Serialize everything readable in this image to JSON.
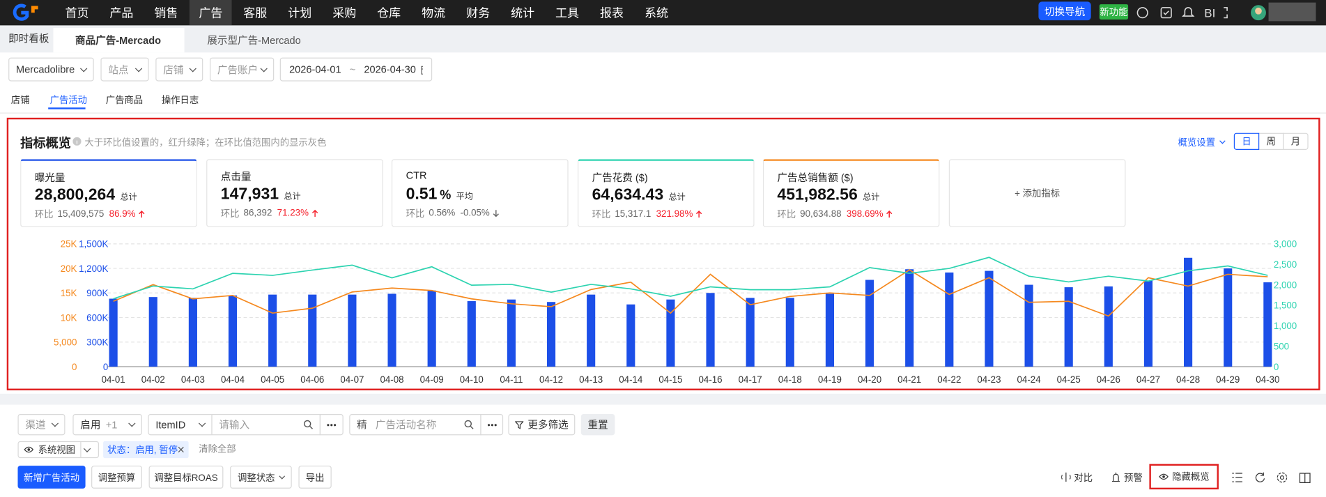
{
  "nav": {
    "menu": [
      "首页",
      "产品",
      "销售",
      "广告",
      "客服",
      "计划",
      "采购",
      "仓库",
      "物流",
      "财务",
      "统计",
      "工具",
      "报表",
      "系统"
    ],
    "active_menu": 3,
    "switch_nav": "切换导航",
    "new_feature": "新功能",
    "bi": "BI"
  },
  "tabs": {
    "home": "即时看板",
    "items": [
      "商品广告-Mercado",
      "展示型广告-Mercado"
    ]
  },
  "filters": {
    "platform": "Mercadolibre",
    "site": "站点",
    "shop": "店铺",
    "ad_account": "广告账户",
    "date_start": "2026-04-01",
    "date_sep": "~",
    "date_end": "2026-04-30"
  },
  "subtabs": {
    "items": [
      "店铺",
      "广告活动",
      "广告商品",
      "操作日志"
    ],
    "active": 1
  },
  "overview": {
    "title": "指标概览",
    "hint": "大于环比值设置的，红升绿降；在环比值范围内的显示灰色",
    "settings": "概览设置",
    "periods": [
      "日",
      "周",
      "月"
    ],
    "cards": [
      {
        "label": "曝光量",
        "value": "28,800,264",
        "agg": "总计",
        "cmp_label": "环比",
        "prev": "15,409,575",
        "change": "86.9%",
        "trend": "up",
        "change_color": "#f5222d",
        "color": "#1c4fe8"
      },
      {
        "label": "点击量",
        "value": "147,931",
        "agg": "总计",
        "cmp_label": "环比",
        "prev": "86,392",
        "change": "71.23%",
        "trend": "up",
        "change_color": "#f5222d"
      },
      {
        "label": "CTR",
        "value": "0.51",
        "unit": "%",
        "agg": "平均",
        "cmp_label": "环比",
        "prev": "0.56%",
        "change": "-0.05%",
        "trend": "down",
        "change_color": "#666666"
      },
      {
        "label": "广告花费 ($)",
        "value": "64,634.43",
        "agg": "总计",
        "cmp_label": "环比",
        "prev": "15,317.1",
        "change": "321.98%",
        "trend": "up",
        "change_color": "#f5222d",
        "color": "#2dd3b0"
      },
      {
        "label": "广告总销售额 ($)",
        "value": "451,982.56",
        "agg": "总计",
        "cmp_label": "环比",
        "prev": "90,634.88",
        "change": "398.69%",
        "trend": "up",
        "change_color": "#f5222d",
        "color": "#f5891f"
      }
    ],
    "add_metric": "+ 添加指标"
  },
  "chart_data": {
    "type": "bar",
    "categories": [
      "04-01",
      "04-02",
      "04-03",
      "04-04",
      "04-05",
      "04-06",
      "04-07",
      "04-08",
      "04-09",
      "04-10",
      "04-11",
      "04-12",
      "04-13",
      "04-14",
      "04-15",
      "04-16",
      "04-17",
      "04-18",
      "04-19",
      "04-20",
      "04-21",
      "04-22",
      "04-23",
      "04-24",
      "04-25",
      "04-26",
      "04-27",
      "04-28",
      "04-29",
      "04-30"
    ],
    "ylim": [
      0,
      1500000
    ],
    "yticks": [
      0,
      {
        "value": 300000,
        "label": "300K"
      },
      {
        "value": 600000,
        "label": "600K"
      },
      {
        "value": 900000,
        "label": "900K"
      },
      {
        "value": 1200000,
        "label": "1,200K"
      },
      {
        "value": 1500000,
        "label": "1,500K"
      }
    ],
    "y2lim": [
      0,
      3000
    ],
    "y2ticks": [
      0,
      500,
      {
        "value": 1000,
        "label": "1,000"
      },
      {
        "value": 1500,
        "label": "1,500"
      },
      {
        "value": 2000,
        "label": "2,000"
      },
      {
        "value": 2500,
        "label": "2,500"
      },
      {
        "value": 3000,
        "label": "3,000"
      }
    ],
    "y3lim": [
      0,
      25000
    ],
    "y3ticks": [
      0,
      {
        "value": 5000,
        "label": "5,000"
      },
      {
        "value": 10000,
        "label": "10K"
      },
      {
        "value": 15000,
        "label": "15K"
      },
      {
        "value": 20000,
        "label": "20K"
      },
      {
        "value": 25000,
        "label": "25K"
      }
    ],
    "grid": true,
    "series": [
      {
        "type": "bar",
        "color": "#1c4fe8",
        "values": [
          830000,
          850000,
          840000,
          870000,
          880000,
          880000,
          880000,
          890000,
          930000,
          800000,
          820000,
          790000,
          880000,
          760000,
          820000,
          900000,
          840000,
          840000,
          890000,
          1060000,
          1190000,
          1150000,
          1170000,
          1000000,
          970000,
          980000,
          1050000,
          1330000,
          1200000,
          1030000
        ]
      },
      {
        "type": "line",
        "axis": "y3",
        "color": "#f5891f",
        "values": [
          13300,
          16700,
          13800,
          14500,
          10900,
          11900,
          15200,
          16000,
          15500,
          13800,
          12800,
          12200,
          15700,
          17200,
          10900,
          18800,
          12600,
          14300,
          15000,
          14500,
          19700,
          14700,
          18100,
          13100,
          13300,
          10300,
          18100,
          16400,
          18800,
          18300
        ]
      },
      {
        "type": "line",
        "axis": "y2",
        "color": "#2dd3b0",
        "values": [
          1660,
          1970,
          1900,
          2280,
          2230,
          2360,
          2480,
          2170,
          2440,
          1990,
          2010,
          1820,
          2010,
          1900,
          1720,
          1950,
          1880,
          1880,
          1950,
          2420,
          2280,
          2400,
          2670,
          2210,
          2070,
          2210,
          2090,
          2340,
          2460,
          2230
        ]
      }
    ]
  },
  "toolbar": {
    "channel": "渠道",
    "status": "启用",
    "status_more": "+1",
    "item_field": "ItemID",
    "item_placeholder": "请输入",
    "exact": "精",
    "campaign_placeholder": "广告活动名称",
    "more_filters": "更多筛选",
    "reset": "重置",
    "view": "系统视图",
    "tag": "状态：启用, 暂停",
    "clear_all": "清除全部",
    "buttons": [
      "新增广告活动",
      "调整预算",
      "调整目标ROAS",
      "调整状态",
      "导出"
    ],
    "compare": "对比",
    "alert": "预警",
    "hide_overview": "隐藏概览"
  }
}
